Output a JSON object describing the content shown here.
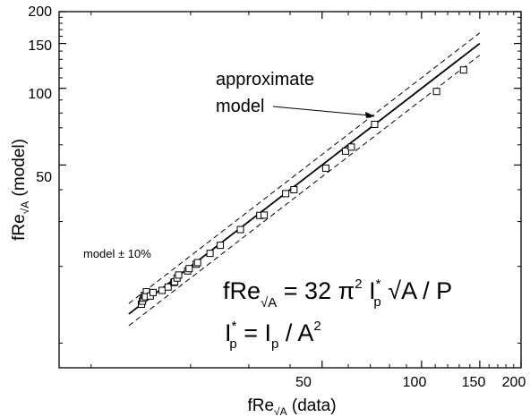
{
  "chart_data": {
    "type": "scatter",
    "scale": "log-log",
    "xlabel": {
      "main": "fRe",
      "sub": "√A",
      "suffix": " (data)"
    },
    "ylabel": {
      "main": "fRe",
      "sub": "√A",
      "suffix": " (model)"
    },
    "xlim": [
      8,
      200
    ],
    "ylim": [
      8,
      200
    ],
    "x_tick_labels": [
      "50",
      "100",
      "150",
      "200"
    ],
    "y_tick_labels": [
      "50",
      "100",
      "150",
      "200"
    ],
    "series": [
      {
        "marker": "square",
        "points": [
          [
            14.2,
            14.2
          ],
          [
            14.3,
            14.6
          ],
          [
            14.4,
            15.0
          ],
          [
            14.5,
            15.4
          ],
          [
            14.7,
            15.9
          ],
          [
            14.6,
            15.2
          ],
          [
            15.1,
            15.3
          ],
          [
            15.4,
            15.8
          ],
          [
            16.4,
            16.1
          ],
          [
            17.1,
            16.6
          ],
          [
            17.8,
            17.3
          ],
          [
            17.9,
            17.4
          ],
          [
            18.2,
            18.0
          ],
          [
            18.4,
            18.5
          ],
          [
            19.6,
            19.2
          ],
          [
            19.8,
            19.6
          ],
          [
            20.8,
            20.4
          ],
          [
            21.0,
            20.7
          ],
          [
            22.9,
            22.5
          ],
          [
            24.6,
            24.2
          ],
          [
            28.3,
            27.9
          ],
          [
            32.4,
            31.7
          ],
          [
            33.4,
            31.8
          ],
          [
            38.8,
            38.6
          ],
          [
            41.1,
            40.0
          ],
          [
            51.3,
            48.6
          ],
          [
            58.9,
            56.7
          ],
          [
            61.3,
            58.8
          ],
          [
            72.1,
            72.2
          ],
          [
            111,
            97.2
          ],
          [
            134,
            118
          ]
        ]
      }
    ],
    "lines": [
      {
        "label": "approximate model",
        "style": "solid",
        "factor": 1.0
      },
      {
        "label": "model ± 10%",
        "style": "dashed",
        "factor": 1.1
      },
      {
        "label": "model ± 10%",
        "style": "dashed",
        "factor": 0.9
      }
    ],
    "line_x_range": [
      13,
      150
    ],
    "annotations": {
      "approx_model_line1": "approximate",
      "approx_model_line2": "model",
      "band_label": "model ± 10%"
    }
  },
  "formula": {
    "line1": {
      "lhs": "fRe",
      "lhs_sub": "√A",
      "eq": " = 32 π",
      "sq": "2",
      "ip": " I",
      "ip_sup": "*",
      "ip_sub": "p",
      "rest": " √A / P"
    },
    "line2": {
      "ip": "I",
      "ip_sup": "*",
      "ip_sub": "p",
      "eq": " = I",
      "p_sub": "p",
      "rest": " / A",
      "sq": "2"
    }
  }
}
